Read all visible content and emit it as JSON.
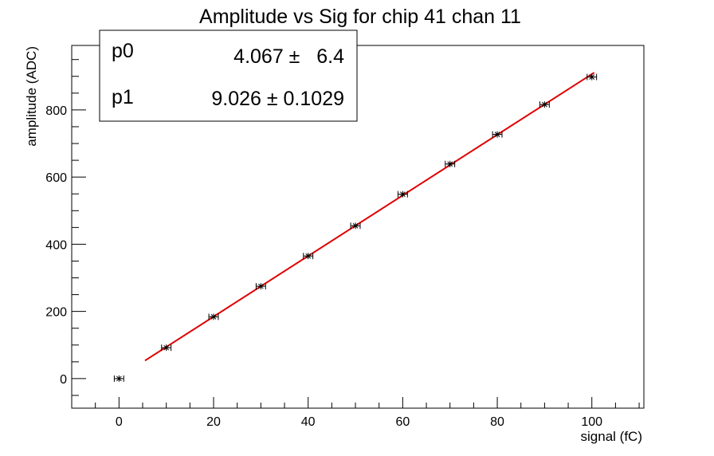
{
  "chart_data": {
    "type": "scatter",
    "title": "Amplitude vs Sig for chip 41 chan 11",
    "xlabel": "signal (fC)",
    "ylabel": "amplitude (ADC)",
    "xlim": [
      -10,
      111
    ],
    "ylim": [
      -88,
      992
    ],
    "x_ticks": [
      0,
      20,
      40,
      60,
      80,
      100
    ],
    "y_ticks": [
      0,
      200,
      400,
      600,
      800
    ],
    "grid": false,
    "series": [
      {
        "points": [
          {
            "x": 0,
            "y": 0
          },
          {
            "x": 10,
            "y": 92
          },
          {
            "x": 20,
            "y": 184
          },
          {
            "x": 30,
            "y": 275
          },
          {
            "x": 40,
            "y": 365
          },
          {
            "x": 50,
            "y": 455
          },
          {
            "x": 60,
            "y": 549
          },
          {
            "x": 70,
            "y": 639
          },
          {
            "x": 80,
            "y": 727
          },
          {
            "x": 90,
            "y": 816
          },
          {
            "x": 100,
            "y": 898
          }
        ],
        "x_error": 1,
        "marker_color": "#000000"
      }
    ],
    "fit": {
      "p0": 4.067,
      "p1": 9.026,
      "x_range": [
        5.5,
        100.5
      ],
      "color": "#e00000"
    },
    "stats_box": {
      "rows": [
        {
          "name": "p0",
          "value": "4.067 ±   6.4"
        },
        {
          "name": "p1",
          "value": "9.026 ± 0.1029"
        }
      ],
      "placement": "top-left"
    }
  }
}
